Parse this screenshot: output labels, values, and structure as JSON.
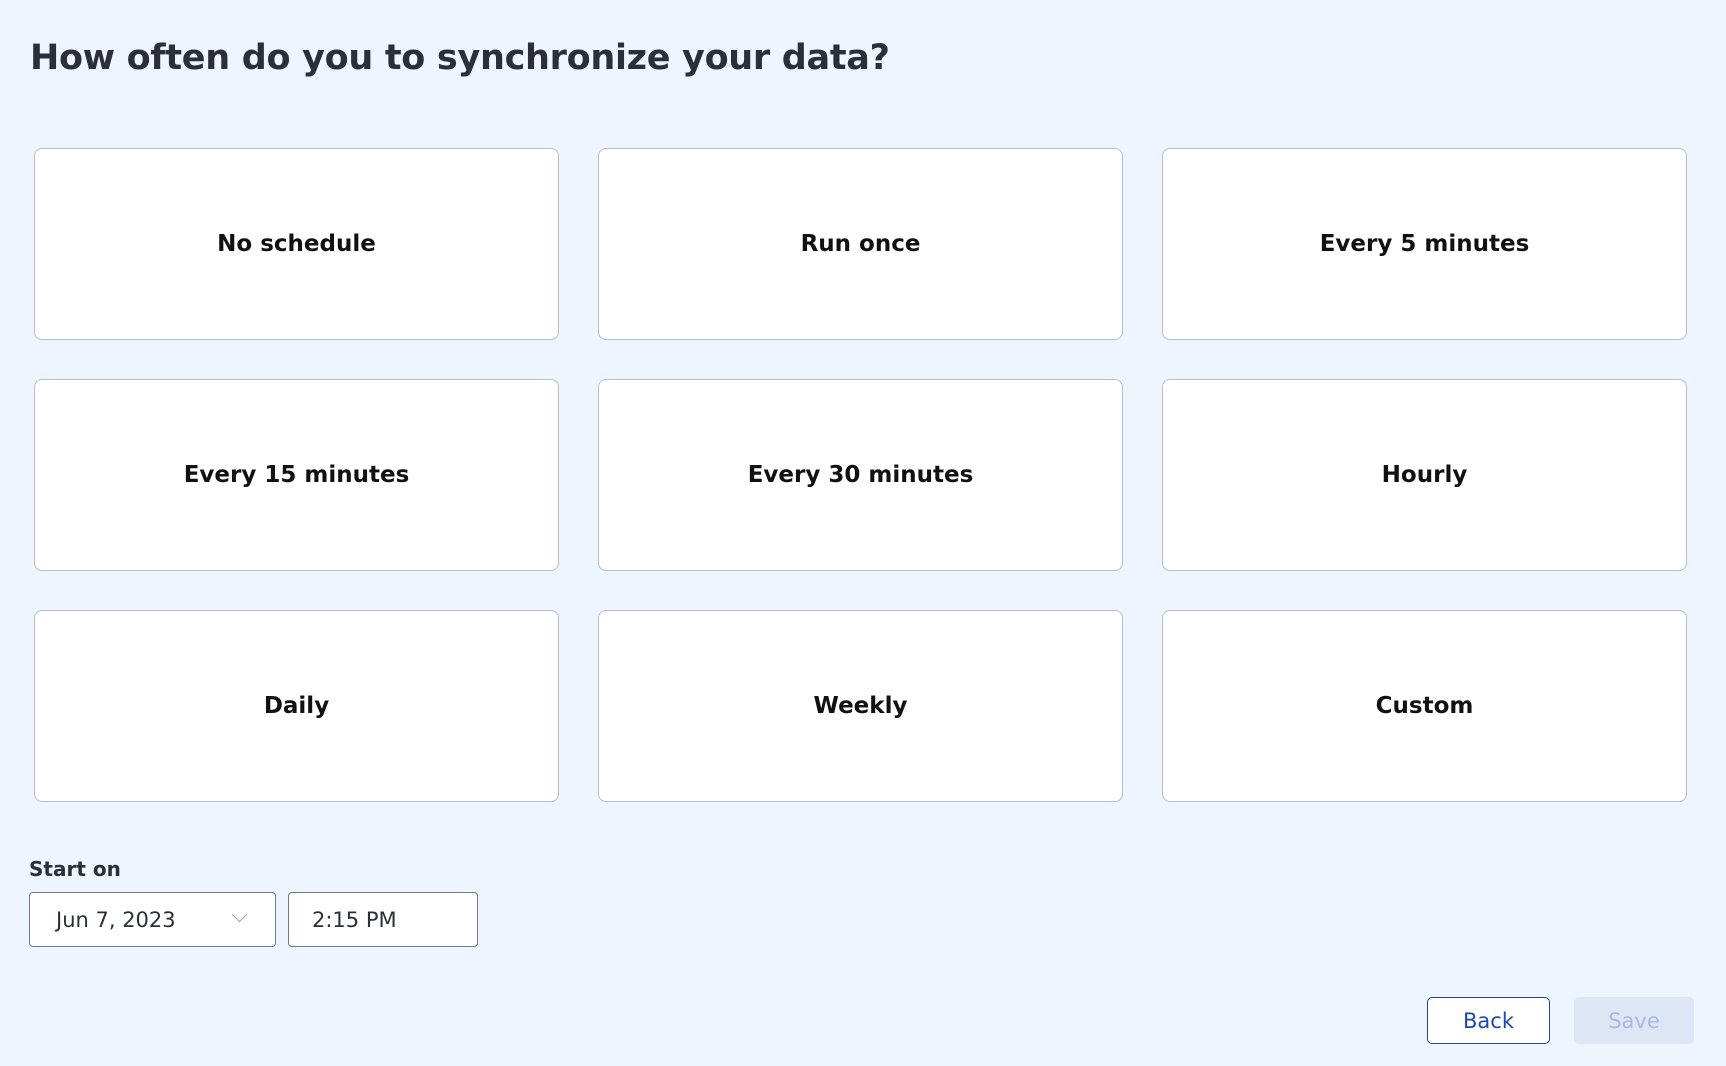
{
  "title": "How often do you to synchronize your data?",
  "options": [
    {
      "label": "No schedule"
    },
    {
      "label": "Run once"
    },
    {
      "label": "Every 5 minutes"
    },
    {
      "label": "Every 15 minutes"
    },
    {
      "label": "Every 30 minutes"
    },
    {
      "label": "Hourly"
    },
    {
      "label": "Daily"
    },
    {
      "label": "Weekly"
    },
    {
      "label": "Custom"
    }
  ],
  "start": {
    "label": "Start on",
    "date": "Jun 7, 2023",
    "time": "2:15 PM",
    "date_icon": "chevron-down-icon"
  },
  "buttons": {
    "back": "Back",
    "save": "Save"
  },
  "colors": {
    "accent": "#1d48b0",
    "disabled_bg": "#dde6f5",
    "background": "#eef5fe"
  }
}
